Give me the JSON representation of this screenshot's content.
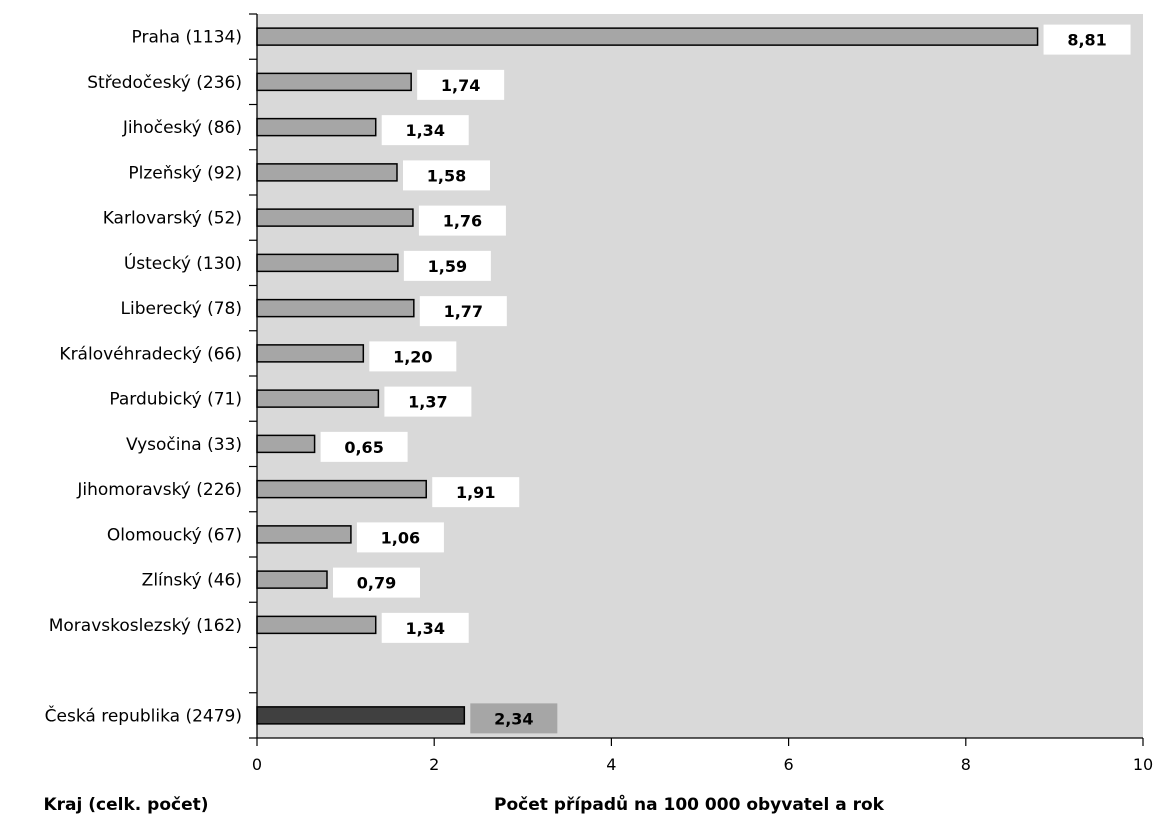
{
  "chart_data": {
    "type": "bar",
    "orientation": "horizontal",
    "categories": [
      "Praha  (1134)",
      "Středočeský  (236)",
      "Jihočeský  (86)",
      "Plzeňský  (92)",
      "Karlovarský  (52)",
      "Ústecký  (130)",
      "Liberecký  (78)",
      "Královéhradecký  (66)",
      "Pardubický  (71)",
      "Vysočina  (33)",
      "Jihomoravský  (226)",
      "Olomoucký  (67)",
      "Zlínský  (46)",
      "Moravskoslezský  (162)",
      "",
      "Česká republika  (2479)"
    ],
    "values": [
      8.81,
      1.74,
      1.34,
      1.58,
      1.76,
      1.59,
      1.77,
      1.2,
      1.37,
      0.65,
      1.91,
      1.06,
      0.79,
      1.34,
      null,
      2.34
    ],
    "value_labels": [
      "8,81",
      "1,74",
      "1,34",
      "1,58",
      "1,76",
      "1,59",
      "1,77",
      "1,20",
      "1,37",
      "0,65",
      "1,91",
      "1,06",
      "0,79",
      "1,34",
      "",
      "2,34"
    ],
    "highlight_index": 15,
    "x_ticks": [
      "0",
      "2",
      "4",
      "6",
      "8",
      "10"
    ],
    "xlim": [
      0,
      10
    ],
    "xlabel": "Počet případů na 100 000 obyvatel a rok",
    "ylabel": "Kraj  (celk. počet)",
    "grid": false,
    "colors": {
      "plot_bg": "#d9d9d9",
      "bar": "#a6a6a6",
      "bar_highlight": "#404040",
      "label_box": "#ffffff",
      "label_box_highlight": "#a6a6a6"
    }
  }
}
